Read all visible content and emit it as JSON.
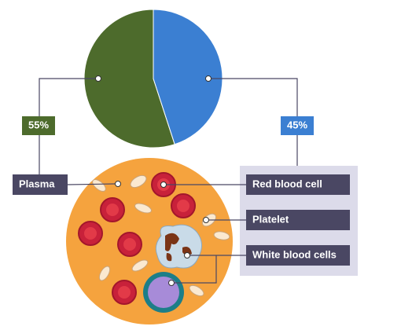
{
  "pie": {
    "values": [
      55,
      45
    ],
    "value_labels": [
      "55%",
      "45%"
    ],
    "colors": [
      "#4d6b2c",
      "#3b7fd2"
    ]
  },
  "labels": [
    "Plasma",
    "Red blood cell",
    "Platelet",
    "White blood cells"
  ]
}
